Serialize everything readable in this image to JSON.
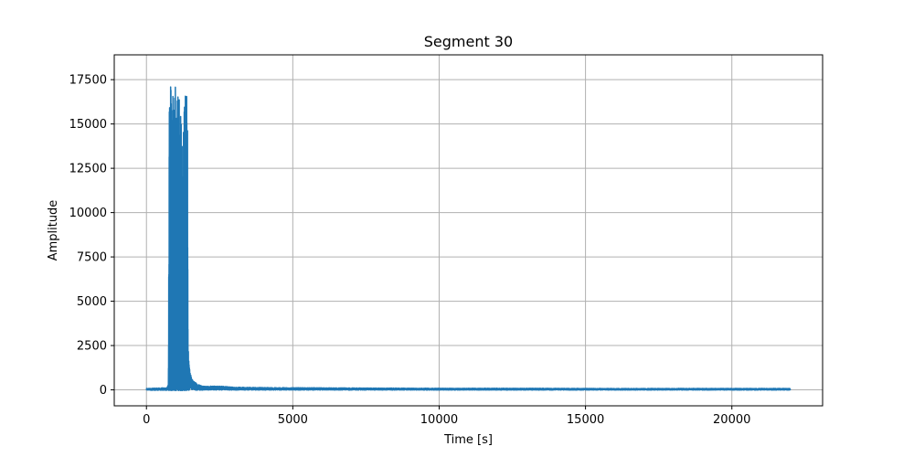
{
  "chart_data": {
    "type": "line",
    "title": "Segment 30",
    "xlabel": "Time [s]",
    "ylabel": "Amplitude",
    "xlim": [
      -1100,
      23100
    ],
    "ylim": [
      -900,
      18900
    ],
    "xticks": [
      0,
      5000,
      10000,
      15000,
      20000
    ],
    "xtick_labels": [
      "0",
      "5000",
      "10000",
      "15000",
      "20000"
    ],
    "yticks": [
      0,
      2500,
      5000,
      7500,
      10000,
      12500,
      15000,
      17500
    ],
    "ytick_labels": [
      "0",
      "2500",
      "5000",
      "7500",
      "10000",
      "12500",
      "15000",
      "17500"
    ],
    "grid": true,
    "color": "#1f77b4",
    "series": [
      {
        "name": "",
        "description": "dense oscillating signal; upper envelope",
        "x": [
          0,
          700,
          750,
          780,
          800,
          850,
          900,
          950,
          1000,
          1050,
          1100,
          1150,
          1200,
          1250,
          1300,
          1350,
          1400,
          1420,
          1450,
          1500,
          1600,
          1800,
          2000,
          2500,
          3000,
          4000,
          5000,
          8000,
          10000,
          13000,
          15000,
          18000,
          20000,
          22000
        ],
        "y_max": [
          80,
          120,
          300,
          15800,
          16200,
          18000,
          17900,
          16800,
          18000,
          16500,
          17100,
          16000,
          15200,
          14000,
          17500,
          17400,
          17300,
          2800,
          1500,
          900,
          500,
          300,
          200,
          220,
          150,
          130,
          120,
          100,
          90,
          90,
          80,
          80,
          80,
          80
        ],
        "y_min": [
          -20,
          -30,
          -30,
          -40,
          -40,
          -40,
          -40,
          -40,
          -40,
          -40,
          -40,
          -40,
          -40,
          -40,
          -40,
          -40,
          -40,
          -30,
          -30,
          -20,
          -20,
          -20,
          -10,
          -10,
          -10,
          -10,
          -10,
          -10,
          -10,
          -10,
          -10,
          -10,
          -10,
          -10
        ]
      }
    ]
  }
}
